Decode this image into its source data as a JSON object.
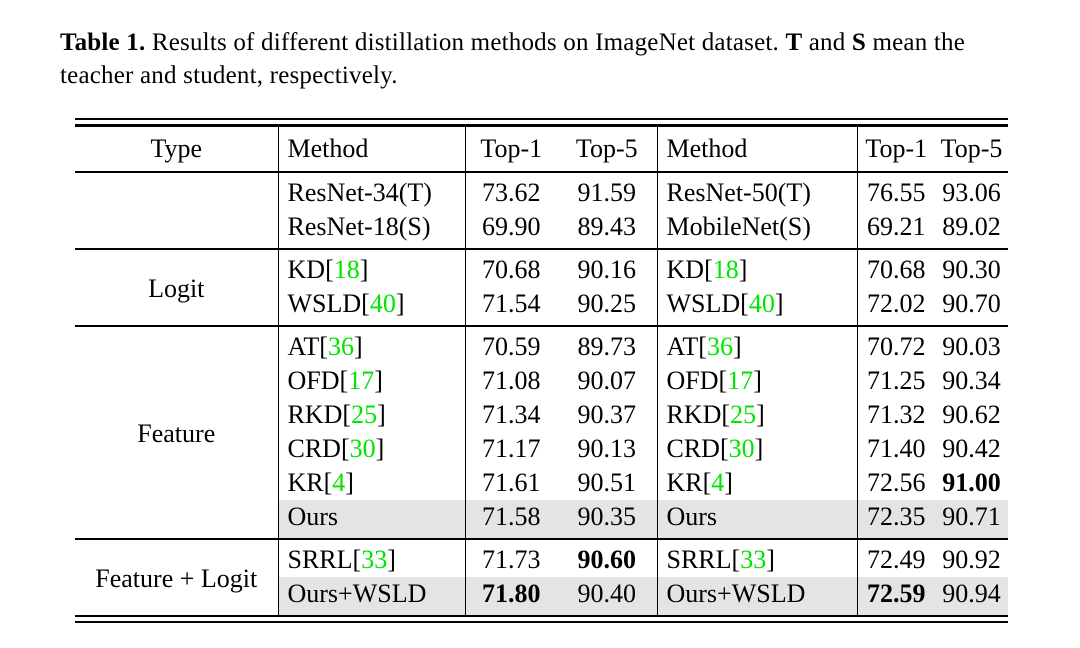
{
  "caption": {
    "label": "Table 1.",
    "seg1": " Results of different distillation methods on ImageNet dataset. ",
    "t": "T",
    "seg2": " and ",
    "s": "S",
    "seg3": " mean the teacher and student, respectively."
  },
  "table": {
    "headers": {
      "type": "Type",
      "method": "Method",
      "top1": "Top-1",
      "top5": "Top-5"
    },
    "bracket_open": "[",
    "bracket_close": "]",
    "colors": {
      "citation_green": "#00e400",
      "highlight_gray": "#e4e4e4",
      "rule_black": "#000000"
    },
    "sections": [
      {
        "type": "",
        "rows": [
          {
            "m1": {
              "name": "ResNet-34(T)"
            },
            "t1a": "73.62",
            "t5a": "91.59",
            "m2": {
              "name": "ResNet-50(T)"
            },
            "t1b": "76.55",
            "t5b": "93.06"
          },
          {
            "m1": {
              "name": "ResNet-18(S)"
            },
            "t1a": "69.90",
            "t5a": "89.43",
            "m2": {
              "name": "MobileNet(S)"
            },
            "t1b": "69.21",
            "t5b": "89.02"
          }
        ]
      },
      {
        "type": "Logit",
        "rows": [
          {
            "m1": {
              "name": "KD",
              "cite": "18"
            },
            "t1a": "70.68",
            "t5a": "90.16",
            "m2": {
              "name": "KD",
              "cite": "18"
            },
            "t1b": "70.68",
            "t5b": "90.30"
          },
          {
            "m1": {
              "name": "WSLD",
              "cite": "40"
            },
            "t1a": "71.54",
            "t5a": "90.25",
            "m2": {
              "name": "WSLD",
              "cite": "40"
            },
            "t1b": "72.02",
            "t5b": "90.70"
          }
        ]
      },
      {
        "type": "Feature",
        "rows": [
          {
            "m1": {
              "name": "AT",
              "cite": "36"
            },
            "t1a": "70.59",
            "t5a": "89.73",
            "m2": {
              "name": "AT",
              "cite": "36"
            },
            "t1b": "70.72",
            "t5b": "90.03"
          },
          {
            "m1": {
              "name": "OFD",
              "cite": "17"
            },
            "t1a": "71.08",
            "t5a": "90.07",
            "m2": {
              "name": "OFD",
              "cite": "17"
            },
            "t1b": "71.25",
            "t5b": "90.34"
          },
          {
            "m1": {
              "name": "RKD",
              "cite": "25"
            },
            "t1a": "71.34",
            "t5a": "90.37",
            "m2": {
              "name": "RKD",
              "cite": "25"
            },
            "t1b": "71.32",
            "t5b": "90.62"
          },
          {
            "m1": {
              "name": "CRD",
              "cite": "30"
            },
            "t1a": "71.17",
            "t5a": "90.13",
            "m2": {
              "name": "CRD",
              "cite": "30"
            },
            "t1b": "71.40",
            "t5b": "90.42"
          },
          {
            "m1": {
              "name": "KR",
              "cite": "4"
            },
            "t1a": "71.61",
            "t5a": "90.51",
            "m2": {
              "name": "KR",
              "cite": "4"
            },
            "t1b": "72.56",
            "t5b": "91.00"
          },
          {
            "m1": {
              "name": "Ours"
            },
            "t1a": "71.58",
            "t5a": "90.35",
            "m2": {
              "name": "Ours"
            },
            "t1b": "72.35",
            "t5b": "90.71"
          }
        ]
      },
      {
        "type": "Feature + Logit",
        "rows": [
          {
            "m1": {
              "name": "SRRL",
              "cite": "33"
            },
            "t1a": "71.73",
            "t5a": "90.60",
            "m2": {
              "name": "SRRL",
              "cite": "33"
            },
            "t1b": "72.49",
            "t5b": "90.92"
          },
          {
            "m1": {
              "name": "Ours+WSLD"
            },
            "t1a": "71.80",
            "t5a": "90.40",
            "m2": {
              "name": "Ours+WSLD"
            },
            "t1b": "72.59",
            "t5b": "90.94"
          }
        ]
      }
    ]
  }
}
